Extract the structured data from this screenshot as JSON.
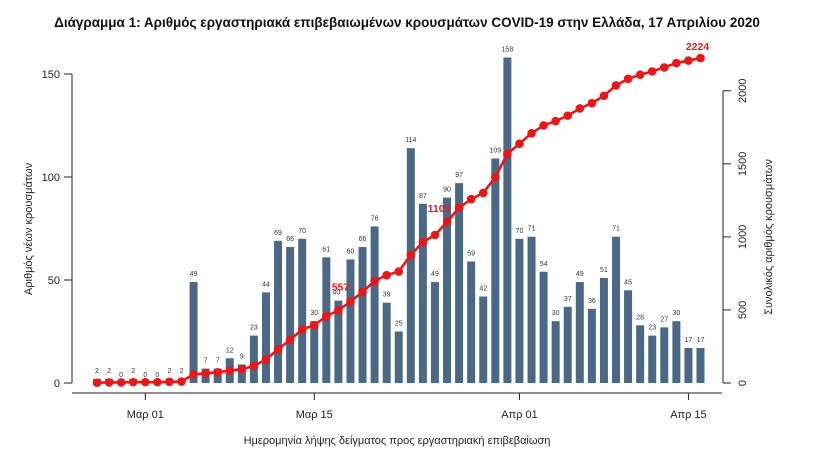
{
  "chart_data": {
    "type": "bar",
    "title": "Διάγραμμα 1: Αριθμός εργαστηριακά επιβεβαιωμένων κρουσμάτων COVID-19 στην Ελλάδα, 17 Απριλίου 2020",
    "xlabel": "Ημερομηνία λήψης δείγματος προς εργαστηριακή επιβεβαίωση",
    "ylabel": "Αριθμός νέων κρουσμάτων",
    "y2label": "Συνολικός αριθμός κρουσμάτων",
    "ylim": [
      0,
      160
    ],
    "y2lim": [
      0,
      2224
    ],
    "yticks": [
      0,
      50,
      100,
      150
    ],
    "y2ticks": [
      0,
      500,
      1000,
      1500,
      2000
    ],
    "x_ticks": [
      {
        "date": "2020-03-01",
        "label": "Μαρ 01"
      },
      {
        "date": "2020-03-15",
        "label": "Μαρ 15"
      },
      {
        "date": "2020-04-01",
        "label": "Απρ 01"
      },
      {
        "date": "2020-04-15",
        "label": "Απρ 15"
      }
    ],
    "x": [
      "2020-02-26",
      "2020-02-27",
      "2020-02-28",
      "2020-02-29",
      "2020-03-01",
      "2020-03-02",
      "2020-03-03",
      "2020-03-04",
      "2020-03-05",
      "2020-03-06",
      "2020-03-07",
      "2020-03-08",
      "2020-03-09",
      "2020-03-10",
      "2020-03-11",
      "2020-03-12",
      "2020-03-13",
      "2020-03-14",
      "2020-03-15",
      "2020-03-16",
      "2020-03-17",
      "2020-03-18",
      "2020-03-19",
      "2020-03-20",
      "2020-03-21",
      "2020-03-22",
      "2020-03-23",
      "2020-03-24",
      "2020-03-25",
      "2020-03-26",
      "2020-03-27",
      "2020-03-28",
      "2020-03-29",
      "2020-03-30",
      "2020-03-31",
      "2020-04-01",
      "2020-04-02",
      "2020-04-03",
      "2020-04-04",
      "2020-04-05",
      "2020-04-06",
      "2020-04-07",
      "2020-04-08",
      "2020-04-09",
      "2020-04-10",
      "2020-04-11",
      "2020-04-12",
      "2020-04-13",
      "2020-04-14",
      "2020-04-15",
      "2020-04-16"
    ],
    "series": [
      {
        "name": "Νέα κρούσματα",
        "type": "bar",
        "axis": "left",
        "color": "#4b6985",
        "values": [
          2,
          2,
          0,
          2,
          0,
          0,
          2,
          2,
          49,
          7,
          7,
          12,
          9,
          23,
          44,
          69,
          66,
          70,
          30,
          61,
          40,
          60,
          66,
          76,
          39,
          25,
          114,
          87,
          49,
          90,
          97,
          59,
          42,
          109,
          158,
          70,
          71,
          54,
          30,
          37,
          49,
          36,
          51,
          71,
          45,
          28,
          23,
          27,
          30,
          17,
          17
        ]
      },
      {
        "name": "Συνολικά κρούσματα",
        "type": "line",
        "axis": "right",
        "color": "#e8171a",
        "values": [
          2,
          4,
          4,
          6,
          6,
          6,
          8,
          10,
          59,
          66,
          73,
          85,
          94,
          117,
          161,
          230,
          296,
          366,
          396,
          457,
          497,
          557,
          623,
          699,
          738,
          763,
          877,
          964,
          1013,
          1103,
          1200,
          1259,
          1301,
          1410,
          1568,
          1638,
          1709,
          1763,
          1793,
          1830,
          1879,
          1915,
          1966,
          2037,
          2082,
          2110,
          2133,
          2160,
          2190,
          2207,
          2224
        ]
      }
    ],
    "annotations": [
      {
        "index": 21,
        "text": "557"
      },
      {
        "index": 29,
        "text": "1103"
      },
      {
        "index": 50,
        "text": "2224"
      }
    ],
    "grid": false,
    "legend": "none"
  }
}
